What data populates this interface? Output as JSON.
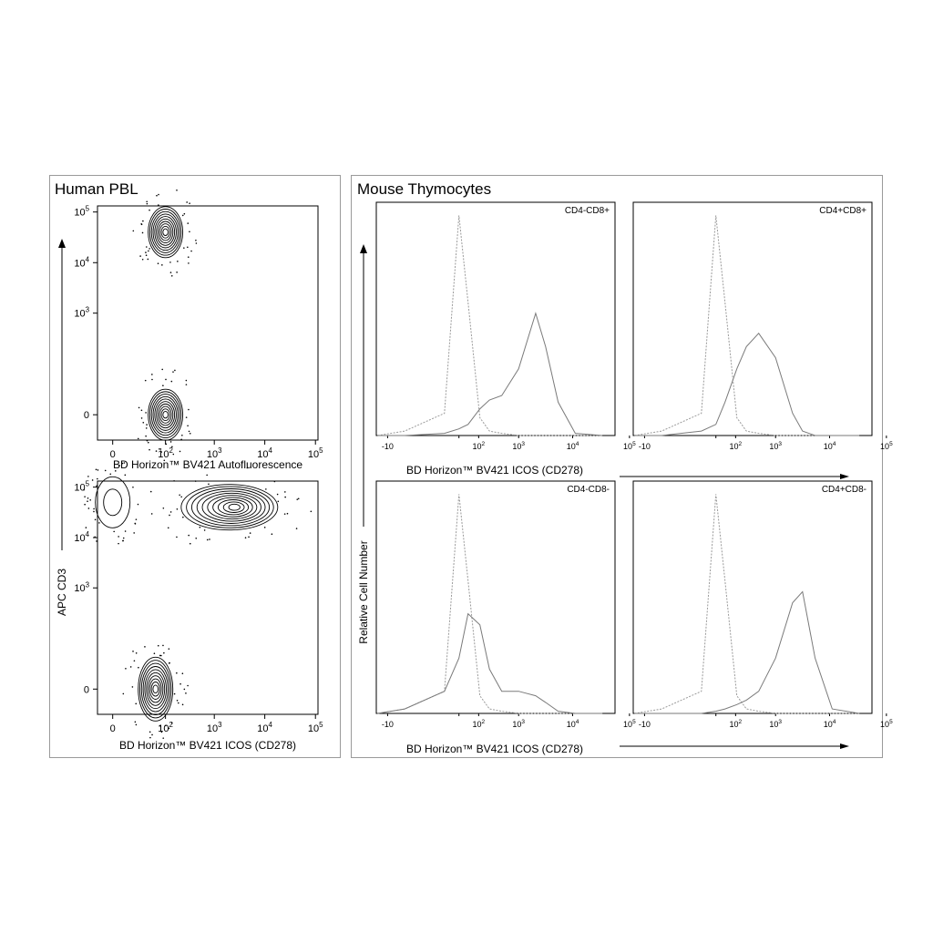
{
  "colors": {
    "contour": "#000000",
    "stained": "#7a7a7a",
    "isotype": "#9a9a9a",
    "frame": "#9a9a9a"
  },
  "panels": {
    "human_title": "Human PBL",
    "mouse_title": "Mouse Thymocytes"
  },
  "chart_data": [
    {
      "type": "scatter",
      "subtype": "contour",
      "panel": "Human PBL",
      "xlabel": "BD Horizon™ BV421 Autofluorescence",
      "ylabel": "APC  CD3",
      "scale": "biexponential",
      "xticks": [
        "0",
        "10^2",
        "10^3",
        "10^4",
        "10^5"
      ],
      "yticks": [
        "0",
        "10^3",
        "10^4",
        "10^5"
      ],
      "populations": [
        {
          "x": 100,
          "y": 40000
        },
        {
          "x": 100,
          "y": 0
        }
      ]
    },
    {
      "type": "scatter",
      "subtype": "contour",
      "panel": "Human PBL",
      "xlabel": "BD Horizon™ BV421 ICOS (CD278)",
      "ylabel": "APC  CD3",
      "scale": "biexponential",
      "xticks": [
        "0",
        "10^2",
        "10^3",
        "10^4",
        "10^5"
      ],
      "yticks": [
        "0",
        "10^3",
        "10^4",
        "10^5"
      ],
      "populations": [
        {
          "x": 0,
          "y": 50000
        },
        {
          "x": 2000,
          "y": 40000
        },
        {
          "x": 60,
          "y": 0
        }
      ]
    },
    {
      "type": "area",
      "subtype": "histogram",
      "label": "CD4-CD8+",
      "xlabel": "BD Horizon™ BV421 ICOS (CD278)",
      "ylabel": "Relative Cell Number",
      "xticks": [
        "-10",
        "10^1",
        "10^2",
        "10^3",
        "10^4",
        "10^5"
      ],
      "x": [
        -20,
        0,
        40,
        80,
        120,
        200,
        300,
        500,
        1000,
        2000,
        3000,
        5000,
        10000,
        30000
      ],
      "series": [
        {
          "values": [
            0,
            0.02,
            0.1,
            0.99,
            0.6,
            0.08,
            0.02,
            0.01,
            0,
            0,
            0,
            0,
            0,
            0
          ]
        },
        {
          "values": [
            0,
            0,
            0.01,
            0.03,
            0.05,
            0.12,
            0.16,
            0.18,
            0.3,
            0.55,
            0.4,
            0.15,
            0.01,
            0
          ]
        }
      ]
    },
    {
      "type": "area",
      "subtype": "histogram",
      "label": "CD4+CD8+",
      "xlabel": "BD Horizon™ BV421 ICOS (CD278)",
      "ylabel": "Relative Cell Number",
      "xticks": [
        "-10",
        "10^1",
        "10^2",
        "10^3",
        "10^4",
        "10^5"
      ],
      "x": [
        -20,
        0,
        40,
        80,
        120,
        200,
        300,
        500,
        1000,
        2000,
        3000,
        5000,
        10000,
        30000
      ],
      "series": [
        {
          "values": [
            0,
            0.02,
            0.1,
            0.99,
            0.6,
            0.08,
            0.02,
            0.01,
            0,
            0,
            0,
            0,
            0,
            0
          ]
        },
        {
          "values": [
            0,
            0,
            0.02,
            0.05,
            0.15,
            0.3,
            0.4,
            0.46,
            0.35,
            0.1,
            0.02,
            0,
            0,
            0
          ]
        }
      ]
    },
    {
      "type": "area",
      "subtype": "histogram",
      "label": "CD4-CD8-",
      "xlabel": "BD Horizon™ BV421 ICOS (CD278)",
      "ylabel": "Relative Cell Number",
      "xticks": [
        "-10",
        "10^1",
        "10^2",
        "10^3",
        "10^4",
        "10^5"
      ],
      "x": [
        -20,
        0,
        40,
        80,
        120,
        200,
        300,
        500,
        1000,
        2000,
        3000,
        5000,
        10000,
        30000
      ],
      "series": [
        {
          "values": [
            0,
            0.02,
            0.1,
            0.99,
            0.6,
            0.08,
            0.02,
            0.01,
            0,
            0,
            0,
            0,
            0,
            0
          ]
        },
        {
          "values": [
            0,
            0.02,
            0.1,
            0.25,
            0.45,
            0.4,
            0.2,
            0.1,
            0.1,
            0.08,
            0.05,
            0.01,
            0,
            0
          ]
        }
      ]
    },
    {
      "type": "area",
      "subtype": "histogram",
      "label": "CD4+CD8-",
      "xlabel": "BD Horizon™ BV421 ICOS (CD278)",
      "ylabel": "Relative Cell Number",
      "xticks": [
        "-10",
        "10^1",
        "10^2",
        "10^3",
        "10^4",
        "10^5"
      ],
      "x": [
        -20,
        0,
        40,
        80,
        120,
        200,
        300,
        500,
        1000,
        2000,
        3000,
        5000,
        10000,
        30000
      ],
      "series": [
        {
          "values": [
            0,
            0.02,
            0.1,
            0.99,
            0.6,
            0.08,
            0.02,
            0.01,
            0,
            0,
            0,
            0,
            0,
            0
          ]
        },
        {
          "values": [
            0,
            0,
            0,
            0.01,
            0.02,
            0.04,
            0.06,
            0.1,
            0.25,
            0.5,
            0.55,
            0.25,
            0.02,
            0
          ]
        }
      ]
    }
  ]
}
